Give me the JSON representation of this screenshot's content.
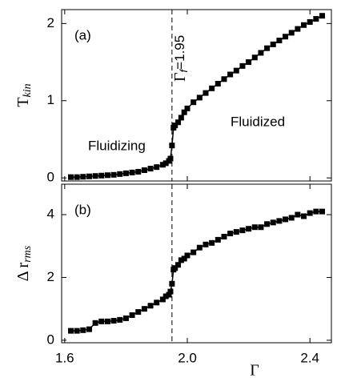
{
  "chart_data": [
    {
      "type": "line",
      "color": "#000000",
      "ylabel": "T",
      "ylabel_sub": "kin",
      "panel_label": "(a)",
      "annotations": [
        "Fluidizing",
        "Fluidized"
      ],
      "vline": 1.95,
      "vline_label": "Γ",
      "vline_label_sub": "f",
      "vline_label_rest": "=1.95",
      "xlim": [
        1.59,
        2.47
      ],
      "xticks": [
        1.6,
        {
          "value": 2,
          "label": "2.0"
        },
        2.4
      ],
      "ylim": [
        -0.04,
        2.18
      ],
      "yticks": [
        0,
        1,
        2
      ],
      "x": [
        1.62,
        1.64,
        1.66,
        1.68,
        1.7,
        1.72,
        1.74,
        1.76,
        1.78,
        1.8,
        1.82,
        1.84,
        1.86,
        1.88,
        1.9,
        1.92,
        1.93,
        1.94,
        1.945,
        1.95,
        1.955,
        1.96,
        1.97,
        1.98,
        1.99,
        2.0,
        2.02,
        2.04,
        2.06,
        2.08,
        2.1,
        2.12,
        2.14,
        2.16,
        2.18,
        2.2,
        2.22,
        2.24,
        2.26,
        2.28,
        2.3,
        2.32,
        2.34,
        2.36,
        2.38,
        2.4,
        2.42,
        2.44
      ],
      "values": [
        0.01,
        0.01,
        0.015,
        0.02,
        0.025,
        0.03,
        0.035,
        0.04,
        0.05,
        0.06,
        0.07,
        0.08,
        0.1,
        0.12,
        0.14,
        0.17,
        0.19,
        0.22,
        0.25,
        0.42,
        0.65,
        0.68,
        0.72,
        0.78,
        0.85,
        0.9,
        0.98,
        1.04,
        1.1,
        1.16,
        1.22,
        1.28,
        1.34,
        1.39,
        1.45,
        1.5,
        1.56,
        1.62,
        1.68,
        1.73,
        1.78,
        1.83,
        1.88,
        1.93,
        1.98,
        2.02,
        2.06,
        2.1
      ]
    },
    {
      "type": "line",
      "color": "#000000",
      "ylabel": "Δ r",
      "ylabel_sub": "rms",
      "xlabel": "Γ",
      "panel_label": "(b)",
      "vline": 1.95,
      "xlim": [
        1.59,
        2.47
      ],
      "xticks": [
        1.6,
        {
          "value": 2,
          "label": "2.0"
        },
        2.4
      ],
      "ylim": [
        -0.08,
        4.97
      ],
      "yticks": [
        0,
        2,
        4
      ],
      "x": [
        1.62,
        1.64,
        1.66,
        1.68,
        1.7,
        1.72,
        1.74,
        1.76,
        1.78,
        1.8,
        1.82,
        1.84,
        1.86,
        1.88,
        1.9,
        1.92,
        1.93,
        1.94,
        1.945,
        1.95,
        1.955,
        1.96,
        1.97,
        1.98,
        1.99,
        2.0,
        2.02,
        2.04,
        2.06,
        2.08,
        2.1,
        2.12,
        2.14,
        2.16,
        2.18,
        2.2,
        2.22,
        2.24,
        2.26,
        2.28,
        2.3,
        2.32,
        2.34,
        2.36,
        2.38,
        2.4,
        2.42,
        2.44
      ],
      "values": [
        0.3,
        0.3,
        0.32,
        0.35,
        0.55,
        0.6,
        0.6,
        0.62,
        0.65,
        0.7,
        0.8,
        0.9,
        1.0,
        1.1,
        1.2,
        1.3,
        1.4,
        1.45,
        1.55,
        1.8,
        2.25,
        2.3,
        2.4,
        2.55,
        2.6,
        2.7,
        2.8,
        2.95,
        3.05,
        3.1,
        3.2,
        3.3,
        3.4,
        3.45,
        3.5,
        3.55,
        3.6,
        3.6,
        3.7,
        3.75,
        3.8,
        3.85,
        3.9,
        4.0,
        3.95,
        4.05,
        4.1,
        4.1
      ]
    }
  ]
}
